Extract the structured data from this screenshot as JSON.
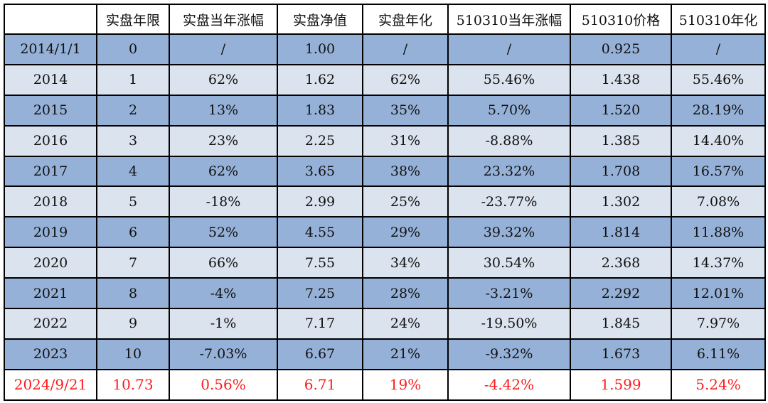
{
  "colors": {
    "dark_row": "#95b1d8",
    "light_row": "#dbe3ef",
    "highlight_text": "#ff1a1a"
  },
  "headers": [
    "",
    "实盘年限",
    "实盘当年涨幅",
    "实盘净值",
    "实盘年化",
    "510310当年涨幅",
    "510310价格",
    "510310年化"
  ],
  "rows": [
    [
      "2014/1/1",
      "0",
      "/",
      "1.00",
      "/",
      "/",
      "0.925",
      "/"
    ],
    [
      "2014",
      "1",
      "62%",
      "1.62",
      "62%",
      "55.46%",
      "1.438",
      "55.46%"
    ],
    [
      "2015",
      "2",
      "13%",
      "1.83",
      "35%",
      "5.70%",
      "1.520",
      "28.19%"
    ],
    [
      "2016",
      "3",
      "23%",
      "2.25",
      "31%",
      "-8.88%",
      "1.385",
      "14.40%"
    ],
    [
      "2017",
      "4",
      "62%",
      "3.65",
      "38%",
      "23.32%",
      "1.708",
      "16.57%"
    ],
    [
      "2018",
      "5",
      "-18%",
      "2.99",
      "25%",
      "-23.77%",
      "1.302",
      "7.08%"
    ],
    [
      "2019",
      "6",
      "52%",
      "4.55",
      "29%",
      "39.32%",
      "1.814",
      "11.88%"
    ],
    [
      "2020",
      "7",
      "66%",
      "7.55",
      "34%",
      "30.54%",
      "2.368",
      "14.37%"
    ],
    [
      "2021",
      "8",
      "-4%",
      "7.25",
      "28%",
      "-3.21%",
      "2.292",
      "12.01%"
    ],
    [
      "2022",
      "9",
      "-1%",
      "7.17",
      "24%",
      "-19.50%",
      "1.845",
      "7.97%"
    ],
    [
      "2023",
      "10",
      "-7.03%",
      "6.67",
      "21%",
      "-9.32%",
      "1.673",
      "6.11%"
    ],
    [
      "2024/9/21",
      "10.73",
      "0.56%",
      "6.71",
      "19%",
      "-4.42%",
      "1.599",
      "5.24%"
    ]
  ]
}
